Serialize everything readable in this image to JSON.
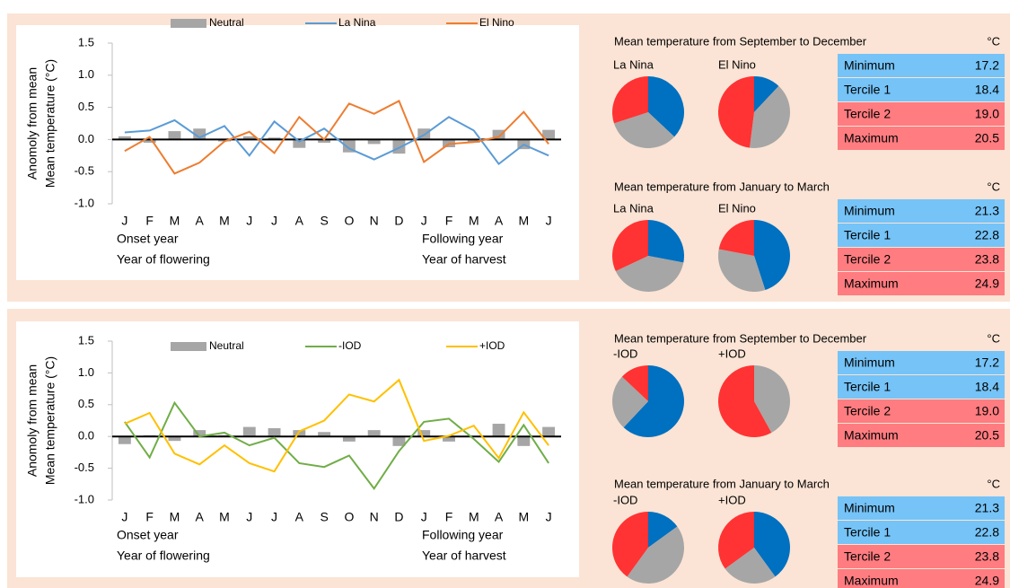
{
  "chart_data": [
    {
      "type": "line",
      "ylabel": [
        "Anomoly from mean",
        "Mean temperature  (°C)"
      ],
      "categories": [
        "J",
        "F",
        "M",
        "A",
        "M",
        "J",
        "J",
        "A",
        "S",
        "O",
        "N",
        "D",
        "J",
        "F",
        "M",
        "A",
        "M",
        "J"
      ],
      "annotations": [
        "Onset year",
        "Year of flowering",
        "Following year",
        "Year of harvest"
      ],
      "ylim": [
        -1.0,
        1.5
      ],
      "yticks": [
        {
          "value": -1.0,
          "label": "-1.0"
        },
        -0.5,
        {
          "value": 0.0,
          "label": "0.0"
        },
        0.5,
        {
          "value": 1.0,
          "label": "1.0"
        },
        1.5
      ],
      "grid": false,
      "series": [
        {
          "name": "Neutral",
          "type": "bar",
          "color": "#a6a6a6",
          "values": [
            0.05,
            -0.05,
            0.13,
            0.17,
            -0.03,
            0.05,
            0.03,
            -0.13,
            -0.05,
            -0.2,
            -0.07,
            -0.22,
            0.17,
            -0.12,
            -0.05,
            0.15,
            -0.15,
            0.15
          ]
        },
        {
          "name": "La Nina",
          "type": "line",
          "color": "#5b9bd5",
          "values": [
            0.11,
            0.14,
            0.3,
            0.03,
            0.21,
            -0.25,
            0.28,
            -0.03,
            0.17,
            -0.14,
            -0.31,
            -0.13,
            0.07,
            0.35,
            0.14,
            -0.38,
            -0.08,
            -0.25
          ]
        },
        {
          "name": "El Nino",
          "type": "line",
          "color": "#ed7d31",
          "values": [
            -0.18,
            0.04,
            -0.53,
            -0.36,
            -0.03,
            0.12,
            -0.21,
            0.35,
            0.0,
            0.56,
            0.4,
            0.6,
            -0.35,
            -0.07,
            -0.04,
            0.04,
            0.43,
            -0.07
          ]
        }
      ]
    },
    {
      "type": "line",
      "ylabel": [
        "Anomoly from mean",
        "Mean temperature (°C)"
      ],
      "categories": [
        "J",
        "F",
        "M",
        "A",
        "M",
        "J",
        "J",
        "A",
        "S",
        "O",
        "N",
        "D",
        "J",
        "F",
        "M",
        "A",
        "M",
        "J"
      ],
      "annotations": [
        "Onset year",
        "Year of flowering",
        "Following year",
        "Year of harvest"
      ],
      "ylim": [
        -1.0,
        1.5
      ],
      "yticks": [
        {
          "value": -1.0,
          "label": "-1.0"
        },
        -0.5,
        {
          "value": 0.0,
          "label": "0.0"
        },
        0.5,
        {
          "value": 1.0,
          "label": "1.0"
        },
        1.5
      ],
      "grid": false,
      "series": [
        {
          "name": "Neutral",
          "type": "bar",
          "color": "#a6a6a6",
          "values": [
            -0.12,
            0.02,
            -0.07,
            0.1,
            0.02,
            0.15,
            0.13,
            0.1,
            0.07,
            -0.08,
            0.1,
            -0.15,
            0.1,
            -0.08,
            0.01,
            0.2,
            -0.15,
            0.15
          ]
        },
        {
          "name": "-IOD",
          "type": "line",
          "color": "#70ad47",
          "values": [
            0.23,
            -0.33,
            0.53,
            0.0,
            0.06,
            -0.14,
            -0.02,
            -0.42,
            -0.48,
            -0.3,
            -0.82,
            -0.23,
            0.23,
            0.28,
            -0.04,
            -0.4,
            0.18,
            -0.42
          ]
        },
        {
          "name": "+IOD",
          "type": "line",
          "color": "#ffc000",
          "values": [
            0.2,
            0.37,
            -0.27,
            -0.44,
            -0.14,
            -0.42,
            -0.55,
            0.08,
            0.25,
            0.66,
            0.55,
            0.89,
            -0.07,
            0.01,
            0.17,
            -0.34,
            0.38,
            -0.14
          ]
        }
      ]
    },
    {
      "type": "pie",
      "title": "La Nina",
      "values": [
        37,
        33,
        30
      ],
      "colors": [
        "#0070c0",
        "#a6a6a6",
        "#ff3333"
      ]
    },
    {
      "type": "pie",
      "title": "El Nino",
      "values": [
        12,
        40,
        48
      ],
      "colors": [
        "#0070c0",
        "#a6a6a6",
        "#ff3333"
      ]
    },
    {
      "type": "pie",
      "title": "La Nina",
      "values": [
        28,
        40,
        32
      ],
      "colors": [
        "#0070c0",
        "#a6a6a6",
        "#ff3333"
      ]
    },
    {
      "type": "pie",
      "title": "El Nino",
      "values": [
        45,
        33,
        22
      ],
      "colors": [
        "#0070c0",
        "#a6a6a6",
        "#ff3333"
      ]
    },
    {
      "type": "pie",
      "title": "-IOD",
      "values": [
        62,
        25,
        13
      ],
      "colors": [
        "#0070c0",
        "#a6a6a6",
        "#ff3333"
      ]
    },
    {
      "type": "pie",
      "title": "+IOD",
      "values": [
        0,
        42,
        58
      ],
      "colors": [
        "#0070c0",
        "#a6a6a6",
        "#ff3333"
      ]
    },
    {
      "type": "pie",
      "title": "-IOD",
      "values": [
        15,
        45,
        40
      ],
      "colors": [
        "#0070c0",
        "#a6a6a6",
        "#ff3333"
      ]
    },
    {
      "type": "pie",
      "title": "+IOD",
      "values": [
        40,
        25,
        35
      ],
      "colors": [
        "#0070c0",
        "#a6a6a6",
        "#ff3333"
      ]
    }
  ],
  "tables": [
    {
      "title": "Mean temperature from September to December",
      "unit": "°C",
      "colors": [
        "#75c3f7",
        "#75c3f7",
        "#ff7c80",
        "#ff7c80"
      ],
      "rows": [
        {
          "label": "Minimum",
          "value": "17.2"
        },
        {
          "label": "Tercile 1",
          "value": "18.4"
        },
        {
          "label": "Tercile 2",
          "value": "19.0"
        },
        {
          "label": "Maximum",
          "value": "20.5"
        }
      ]
    },
    {
      "title": "Mean temperature from January to March",
      "unit": "°C",
      "colors": [
        "#75c3f7",
        "#75c3f7",
        "#ff7c80",
        "#ff7c80"
      ],
      "rows": [
        {
          "label": "Minimum",
          "value": "21.3"
        },
        {
          "label": "Tercile 1",
          "value": "22.8"
        },
        {
          "label": "Tercile 2",
          "value": "23.8"
        },
        {
          "label": "Maximum",
          "value": "24.9"
        }
      ]
    },
    {
      "title": "Mean temperature from September to December",
      "unit": "°C",
      "colors": [
        "#75c3f7",
        "#75c3f7",
        "#ff7c80",
        "#ff7c80"
      ],
      "rows": [
        {
          "label": "Minimum",
          "value": "17.2"
        },
        {
          "label": "Tercile 1",
          "value": "18.4"
        },
        {
          "label": "Tercile 2",
          "value": "19.0"
        },
        {
          "label": "Maximum",
          "value": "20.5"
        }
      ]
    },
    {
      "title": "Mean temperature from January to March",
      "unit": "°C",
      "colors": [
        "#75c3f7",
        "#75c3f7",
        "#ff7c80",
        "#ff7c80"
      ],
      "rows": [
        {
          "label": "Minimum",
          "value": "21.3"
        },
        {
          "label": "Tercile 1",
          "value": "22.8"
        },
        {
          "label": "Tercile 2",
          "value": "23.8"
        },
        {
          "label": "Maximum",
          "value": "24.9"
        }
      ]
    }
  ]
}
